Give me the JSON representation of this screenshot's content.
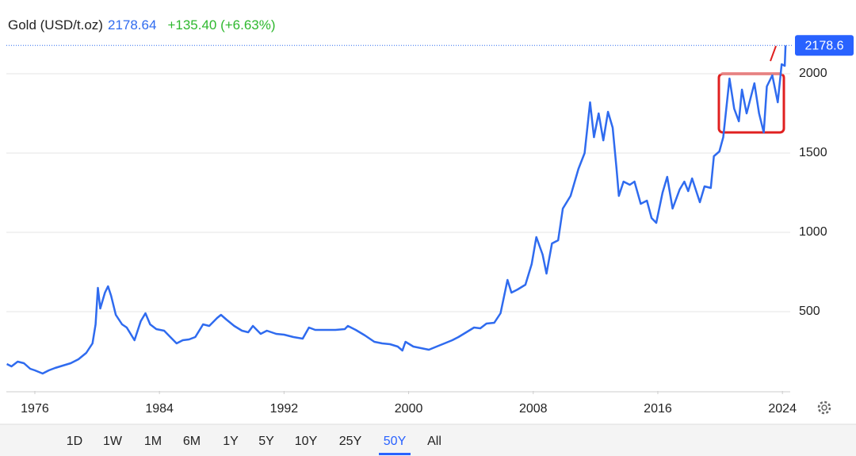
{
  "chart_data": {
    "type": "line",
    "title": "Gold (USD/t.oz)",
    "last": "2178.64",
    "change": "+135.40 (+6.63%)",
    "last_marker": {
      "value": 2178.64,
      "label": "2178.6"
    },
    "x": [
      1974.2,
      1974.5,
      1974.9,
      1975.3,
      1975.7,
      1976.0,
      1976.5,
      1976.9,
      1977.3,
      1977.8,
      1978.3,
      1978.8,
      1979.3,
      1979.7,
      1979.9,
      1980.05,
      1980.2,
      1980.5,
      1980.7,
      1980.9,
      1981.2,
      1981.6,
      1981.9,
      1982.4,
      1982.8,
      1983.1,
      1983.4,
      1983.8,
      1984.3,
      1984.7,
      1985.1,
      1985.5,
      1985.9,
      1986.3,
      1986.8,
      1987.2,
      1987.7,
      1987.95,
      1988.3,
      1988.8,
      1989.3,
      1989.7,
      1990.0,
      1990.5,
      1990.9,
      1991.5,
      1992.0,
      1992.6,
      1993.2,
      1993.6,
      1994.0,
      1994.6,
      1995.3,
      1995.9,
      1996.1,
      1996.6,
      1997.2,
      1997.8,
      1998.3,
      1998.8,
      1999.3,
      1999.6,
      1999.8,
      2000.3,
      2000.8,
      2001.3,
      2001.8,
      2002.3,
      2002.8,
      2003.2,
      2003.7,
      2004.2,
      2004.6,
      2005.0,
      2005.5,
      2005.9,
      2006.35,
      2006.6,
      2007.0,
      2007.5,
      2007.9,
      2008.2,
      2008.6,
      2008.85,
      2009.2,
      2009.6,
      2009.9,
      2010.4,
      2010.9,
      2011.3,
      2011.65,
      2011.9,
      2012.2,
      2012.5,
      2012.8,
      2013.1,
      2013.35,
      2013.5,
      2013.8,
      2014.2,
      2014.5,
      2014.9,
      2015.3,
      2015.6,
      2015.9,
      2016.3,
      2016.6,
      2016.95,
      2017.4,
      2017.7,
      2017.95,
      2018.2,
      2018.7,
      2019.0,
      2019.4,
      2019.6,
      2019.95,
      2020.2,
      2020.6,
      2020.9,
      2021.2,
      2021.4,
      2021.7,
      2022.2,
      2022.5,
      2022.8,
      2023.0,
      2023.35,
      2023.7,
      2023.95,
      2024.15,
      2024.2
    ],
    "series": [
      {
        "name": "Gold",
        "color": "#2f6bef",
        "values": [
          170,
          155,
          185,
          175,
          140,
          130,
          110,
          130,
          145,
          160,
          175,
          200,
          240,
          300,
          420,
          650,
          520,
          620,
          660,
          600,
          480,
          420,
          400,
          320,
          440,
          490,
          420,
          390,
          380,
          340,
          300,
          320,
          325,
          340,
          420,
          410,
          460,
          480,
          450,
          410,
          380,
          370,
          410,
          360,
          380,
          360,
          355,
          340,
          330,
          400,
          385,
          385,
          385,
          390,
          410,
          385,
          350,
          310,
          300,
          295,
          280,
          255,
          310,
          280,
          270,
          260,
          280,
          300,
          320,
          340,
          370,
          400,
          395,
          425,
          430,
          490,
          700,
          620,
          640,
          670,
          800,
          970,
          860,
          740,
          930,
          950,
          1150,
          1230,
          1400,
          1500,
          1820,
          1600,
          1750,
          1580,
          1760,
          1660,
          1400,
          1230,
          1320,
          1300,
          1320,
          1180,
          1200,
          1090,
          1060,
          1250,
          1350,
          1150,
          1270,
          1320,
          1260,
          1340,
          1190,
          1290,
          1280,
          1480,
          1510,
          1600,
          1970,
          1780,
          1700,
          1900,
          1750,
          1940,
          1750,
          1630,
          1920,
          1990,
          1820,
          2060,
          2050,
          2178.64
        ]
      }
    ],
    "xlim": [
      1974.17,
      2024.5
    ],
    "xticks": [
      1976,
      1984,
      1992,
      2000,
      2008,
      2016,
      2024
    ],
    "ylim": [
      0,
      2250
    ],
    "yticks": [
      500,
      1000,
      1500,
      2000
    ],
    "grid": true,
    "ranges": [
      "1D",
      "1W",
      "1M",
      "6M",
      "1Y",
      "5Y",
      "10Y",
      "25Y",
      "50Y",
      "All"
    ],
    "selected_range": "50Y"
  }
}
